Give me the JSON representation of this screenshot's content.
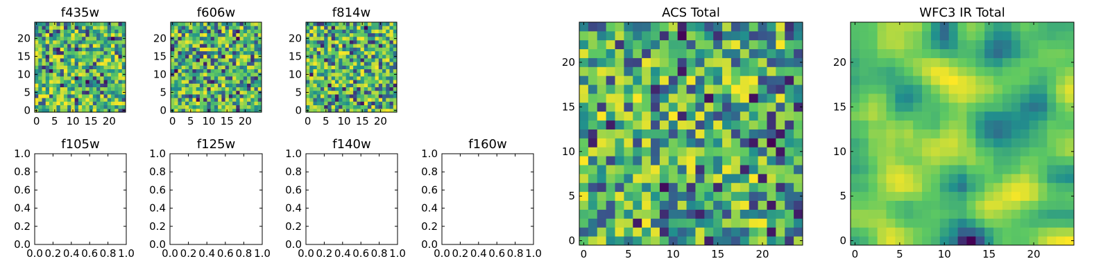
{
  "figure": {
    "colormap": [
      "#440154",
      "#3b528b",
      "#21908d",
      "#5ec962",
      "#fde725"
    ]
  },
  "chart_data": [
    {
      "type": "heatmap",
      "title": "f435w",
      "grid": [
        25,
        25
      ],
      "seed": 11,
      "smooth": 0,
      "bias": 0.55,
      "xticks": [
        0,
        5,
        10,
        15,
        20
      ],
      "yticks": [
        0,
        5,
        10,
        15,
        20
      ],
      "xlim": [
        -0.5,
        24.5
      ],
      "ylim": [
        -0.5,
        24.5
      ]
    },
    {
      "type": "heatmap",
      "title": "f606w",
      "grid": [
        25,
        25
      ],
      "seed": 23,
      "smooth": 0,
      "bias": 0.55,
      "xticks": [
        0,
        5,
        10,
        15,
        20
      ],
      "yticks": [
        0,
        5,
        10,
        15,
        20
      ],
      "xlim": [
        -0.5,
        24.5
      ],
      "ylim": [
        -0.5,
        24.5
      ]
    },
    {
      "type": "heatmap",
      "title": "f814w",
      "grid": [
        25,
        25
      ],
      "seed": 37,
      "smooth": 0,
      "bias": 0.55,
      "xticks": [
        0,
        5,
        10,
        15,
        20
      ],
      "yticks": [
        0,
        5,
        10,
        15,
        20
      ],
      "xlim": [
        -0.5,
        24.5
      ],
      "ylim": [
        -0.5,
        24.5
      ]
    },
    {
      "type": "empty",
      "title": "f105w",
      "xticks": [
        "0.0",
        "0.2",
        "0.4",
        "0.6",
        "0.8",
        "1.0"
      ],
      "yticks": [
        "0.0",
        "0.2",
        "0.4",
        "0.6",
        "0.8",
        "1.0"
      ],
      "xlim": [
        0,
        1
      ],
      "ylim": [
        0,
        1
      ]
    },
    {
      "type": "empty",
      "title": "f125w",
      "xticks": [
        "0.0",
        "0.2",
        "0.4",
        "0.6",
        "0.8",
        "1.0"
      ],
      "yticks": [
        "0.0",
        "0.2",
        "0.4",
        "0.6",
        "0.8",
        "1.0"
      ],
      "xlim": [
        0,
        1
      ],
      "ylim": [
        0,
        1
      ]
    },
    {
      "type": "empty",
      "title": "f140w",
      "xticks": [
        "0.0",
        "0.2",
        "0.4",
        "0.6",
        "0.8",
        "1.0"
      ],
      "yticks": [
        "0.0",
        "0.2",
        "0.4",
        "0.6",
        "0.8",
        "1.0"
      ],
      "xlim": [
        0,
        1
      ],
      "ylim": [
        0,
        1
      ]
    },
    {
      "type": "empty",
      "title": "f160w",
      "xticks": [
        "0.0",
        "0.2",
        "0.4",
        "0.6",
        "0.8",
        "1.0"
      ],
      "yticks": [
        "0.0",
        "0.2",
        "0.4",
        "0.6",
        "0.8",
        "1.0"
      ],
      "xlim": [
        0,
        1
      ],
      "ylim": [
        0,
        1
      ]
    },
    {
      "type": "heatmap",
      "title": "ACS Total",
      "grid": [
        25,
        25
      ],
      "seed": 53,
      "smooth": 0,
      "bias": 0.6,
      "xticks": [
        0,
        5,
        10,
        15,
        20
      ],
      "yticks": [
        0,
        5,
        10,
        15,
        20
      ],
      "xlim": [
        -0.5,
        24.5
      ],
      "ylim": [
        -0.5,
        24.5
      ]
    },
    {
      "type": "heatmap",
      "title": "WFC3 IR Total",
      "grid": [
        25,
        25
      ],
      "seed": 71,
      "smooth": 2,
      "bias": 0.5,
      "xticks": [
        0,
        5,
        10,
        15,
        20
      ],
      "yticks": [
        0,
        5,
        10,
        15,
        20
      ],
      "xlim": [
        -0.5,
        24.5
      ],
      "ylim": [
        -0.5,
        24.5
      ]
    }
  ]
}
